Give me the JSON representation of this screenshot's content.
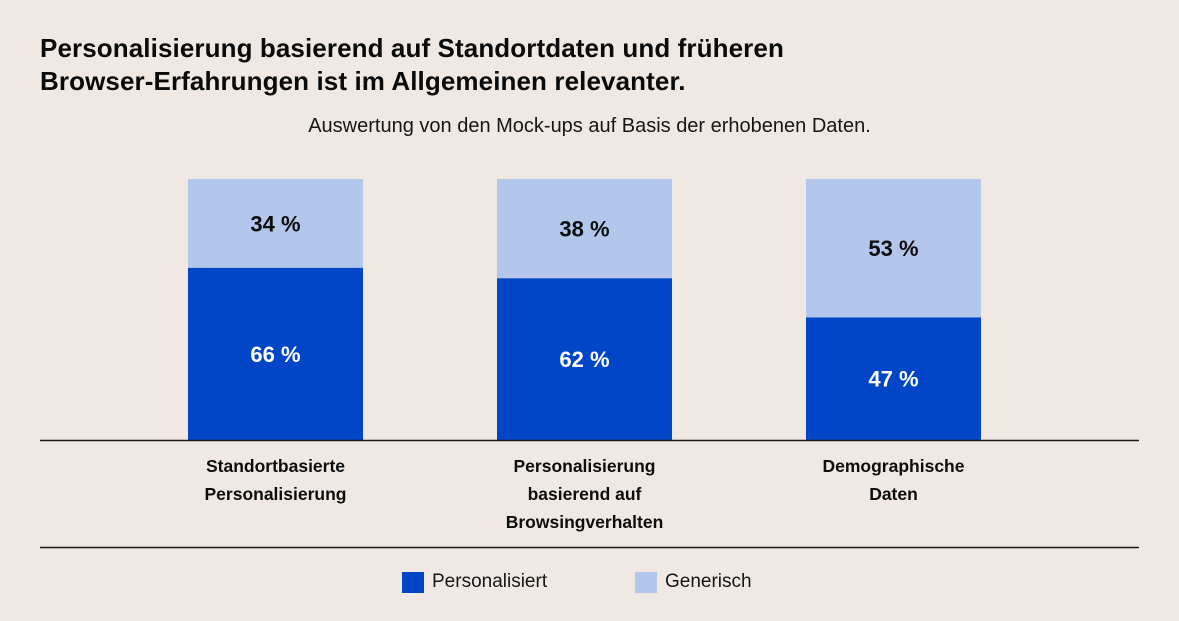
{
  "title_line1": "Personalisierung basierend auf Standortdaten und früheren",
  "title_line2": "Browser-Erfahrungen ist im Allgemeinen relevanter.",
  "subtitle": "Auswertung von den Mock-ups auf Basis der erhobenen Daten.",
  "colors": {
    "personalisiert": "#0046c6",
    "generisch": "#b3c6ec",
    "background": "#f0e9e3",
    "axis": "#1a1a1a"
  },
  "chart_data": {
    "type": "bar",
    "stacked": true,
    "title": "Personalisierung basierend auf Standortdaten und früheren Browser-Erfahrungen ist im Allgemeinen relevanter.",
    "subtitle": "Auswertung von den Mock-ups auf Basis der erhobenen Daten.",
    "categories": [
      "Standortbasierte Personalisierung",
      "Personalisierung basierend auf Browsingverhalten",
      "Demographische Daten"
    ],
    "category_lines": [
      [
        "Standortbasierte",
        "Personalisierung"
      ],
      [
        "Personalisierung",
        "basierend auf",
        "Browsingverhalten"
      ],
      [
        "Demographische",
        "Daten"
      ]
    ],
    "series": [
      {
        "name": "Personalisiert",
        "values": [
          66,
          62,
          47
        ],
        "labels": [
          "66 %",
          "62 %",
          "47 %"
        ]
      },
      {
        "name": "Generisch",
        "values": [
          34,
          38,
          53
        ],
        "labels": [
          "34 %",
          "38 %",
          "53 %"
        ]
      }
    ],
    "xlabel": "",
    "ylabel": "",
    "ylim": [
      0,
      100
    ],
    "grid": false,
    "legend": "bottom-center",
    "unit": "%"
  },
  "legend": [
    {
      "label": "Personalisiert"
    },
    {
      "label": "Generisch"
    }
  ]
}
